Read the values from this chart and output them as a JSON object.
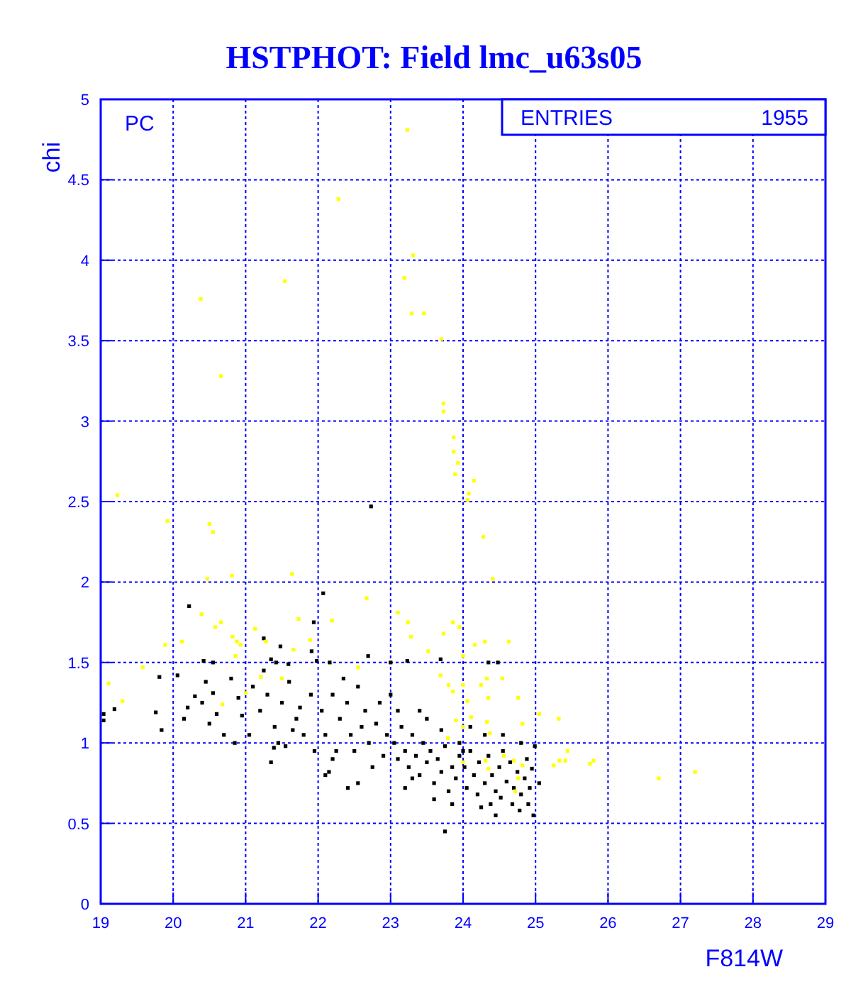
{
  "chart_data": {
    "type": "scatter",
    "title": "HSTPHOT: Field lmc_u63s05",
    "xlabel": "F814W",
    "ylabel": "chi",
    "xlim": [
      19,
      29
    ],
    "ylim": [
      0,
      5
    ],
    "xticks": [
      19,
      20,
      21,
      22,
      23,
      24,
      25,
      26,
      27,
      28,
      29
    ],
    "yticks": [
      0,
      0.5,
      1,
      1.5,
      2,
      2.5,
      3,
      3.5,
      4,
      4.5,
      5
    ],
    "grid": true,
    "marker": "square",
    "annotations": [
      "PC",
      "ENTRIES",
      "1955"
    ],
    "series": [
      {
        "color": "#000000",
        "x": [
          19.04,
          19.04,
          19.19,
          19.76,
          19.84,
          19.81,
          20.06,
          20.42,
          20.55,
          21.35,
          21.42,
          21.59,
          21.98,
          22.16,
          23.0,
          23.23,
          23.69,
          24.35,
          24.48,
          20.22,
          21.25,
          21.48,
          21.94,
          22.07,
          21.91,
          22.69,
          22.73,
          21.39,
          22.1,
          22.41,
          20.3,
          20.45,
          20.2,
          20.55,
          20.7,
          20.6,
          20.9,
          20.95,
          20.8,
          20.5,
          20.15,
          20.85,
          20.4,
          21.1,
          21.2,
          21.3,
          21.4,
          21.5,
          21.6,
          21.7,
          21.8,
          21.9,
          21.05,
          21.45,
          21.35,
          21.75,
          21.95,
          21.25,
          21.65,
          21.55,
          22.05,
          22.1,
          22.2,
          22.25,
          22.3,
          22.4,
          22.45,
          22.5,
          22.55,
          22.6,
          22.65,
          22.7,
          22.75,
          22.8,
          22.85,
          22.9,
          22.95,
          22.15,
          22.55,
          22.35,
          22.2,
          23.05,
          23.1,
          23.15,
          23.2,
          23.25,
          23.3,
          23.35,
          23.4,
          23.45,
          23.5,
          23.55,
          23.6,
          23.65,
          23.7,
          23.75,
          23.8,
          23.85,
          23.9,
          23.95,
          23.1,
          23.3,
          23.5,
          23.7,
          23.2,
          23.6,
          23.4,
          23.85,
          23.95,
          23.75,
          23.0,
          24.02,
          24.05,
          24.1,
          24.15,
          24.2,
          24.22,
          24.3,
          24.35,
          24.38,
          24.4,
          24.45,
          24.5,
          24.52,
          24.55,
          24.6,
          24.65,
          24.68,
          24.7,
          24.75,
          24.78,
          24.8,
          24.85,
          24.88,
          24.9,
          24.92,
          24.95,
          24.97,
          24.99,
          25.05,
          24.1,
          24.3,
          24.55,
          24.8,
          24.25,
          24.0,
          24.45
        ],
        "values": [
          1.18,
          1.14,
          1.21,
          1.19,
          1.08,
          1.41,
          1.42,
          1.51,
          1.5,
          1.52,
          1.5,
          1.49,
          1.51,
          1.5,
          1.5,
          1.51,
          1.52,
          1.5,
          1.5,
          1.85,
          1.65,
          1.6,
          1.75,
          1.93,
          1.57,
          1.54,
          2.47,
          0.97,
          0.8,
          0.72,
          1.29,
          1.38,
          1.22,
          1.31,
          1.05,
          1.18,
          1.28,
          1.17,
          1.4,
          1.12,
          1.15,
          1.0,
          1.25,
          1.35,
          1.2,
          1.3,
          1.1,
          1.25,
          1.38,
          1.15,
          1.05,
          1.3,
          1.05,
          1.0,
          0.88,
          1.22,
          0.95,
          1.45,
          1.08,
          0.98,
          1.2,
          1.05,
          1.3,
          0.95,
          1.15,
          1.25,
          1.05,
          0.95,
          1.35,
          1.1,
          1.2,
          1.0,
          0.85,
          1.12,
          1.25,
          0.92,
          1.05,
          0.82,
          0.75,
          1.4,
          0.9,
          1.0,
          0.9,
          1.1,
          0.95,
          0.85,
          1.05,
          0.92,
          0.8,
          1.0,
          0.88,
          0.95,
          0.75,
          0.9,
          0.82,
          0.98,
          0.7,
          0.85,
          0.78,
          0.92,
          1.2,
          0.78,
          1.15,
          1.08,
          0.72,
          0.65,
          1.2,
          0.62,
          1.0,
          0.45,
          1.3,
          0.85,
          0.72,
          0.95,
          0.8,
          0.68,
          0.88,
          0.75,
          0.92,
          0.62,
          0.8,
          0.7,
          0.85,
          0.66,
          0.95,
          0.76,
          0.88,
          0.62,
          0.72,
          0.82,
          0.58,
          0.68,
          0.78,
          0.9,
          0.62,
          0.72,
          0.84,
          0.55,
          0.98,
          0.75,
          1.1,
          1.05,
          1.05,
          1.0,
          0.6,
          0.95,
          0.55
        ]
      },
      {
        "color": "#ffff00",
        "x": [
          23.23,
          22.28,
          23.31,
          23.19,
          21.54,
          20.38,
          23.29,
          23.46,
          23.7,
          20.66,
          23.73,
          23.73,
          23.87,
          23.87,
          23.93,
          23.89,
          24.15,
          24.08,
          24.06,
          19.23,
          19.92,
          20.5,
          20.55,
          24.28,
          20.47,
          20.81,
          21.64,
          24.41,
          22.67,
          20.39,
          20.58,
          20.66,
          19.89,
          20.12,
          20.82,
          20.88,
          20.93,
          20.86,
          21.13,
          21.28,
          21.66,
          21.73,
          21.89,
          22.19,
          23.1,
          23.24,
          23.28,
          23.52,
          23.73,
          23.86,
          23.95,
          24.16,
          24.3,
          24.63,
          24.0,
          23.69,
          23.8,
          23.86,
          24.0,
          24.06,
          24.33,
          24.25,
          24.54,
          24.76,
          24.35,
          23.9,
          24.0,
          24.11,
          24.33,
          24.37,
          24.82,
          25.05,
          25.32,
          25.44,
          25.33,
          25.41,
          25.25,
          25.75,
          25.8,
          24.31,
          24.56,
          24.7,
          24.82,
          24.72,
          24.76,
          24.35,
          24.0,
          23.79,
          20.68,
          21.0,
          19.58,
          19.11,
          19.3,
          21.21,
          21.5,
          22.55,
          26.7,
          27.2
        ],
        "values": [
          4.81,
          4.38,
          4.03,
          3.89,
          3.87,
          3.76,
          3.67,
          3.67,
          3.51,
          3.28,
          3.11,
          3.06,
          2.9,
          2.81,
          2.74,
          2.67,
          2.63,
          2.55,
          2.51,
          2.54,
          2.38,
          2.36,
          2.31,
          2.28,
          2.02,
          2.04,
          2.05,
          2.02,
          1.9,
          1.8,
          1.72,
          1.75,
          1.61,
          1.63,
          1.66,
          1.63,
          1.61,
          1.54,
          1.71,
          1.63,
          1.58,
          1.77,
          1.64,
          1.76,
          1.81,
          1.75,
          1.66,
          1.57,
          1.68,
          1.75,
          1.72,
          1.61,
          1.63,
          1.63,
          1.54,
          1.42,
          1.36,
          1.32,
          1.36,
          1.26,
          1.4,
          1.36,
          1.4,
          1.28,
          1.28,
          1.14,
          1.1,
          1.16,
          1.13,
          1.06,
          1.12,
          1.18,
          1.15,
          0.95,
          0.89,
          0.89,
          0.86,
          0.87,
          0.89,
          0.89,
          0.92,
          0.89,
          0.86,
          0.7,
          0.78,
          0.84,
          0.88,
          1.03,
          1.24,
          1.31,
          1.47,
          1.37,
          1.26,
          1.41,
          1.4,
          1.47,
          0.78,
          0.82
        ]
      }
    ]
  }
}
